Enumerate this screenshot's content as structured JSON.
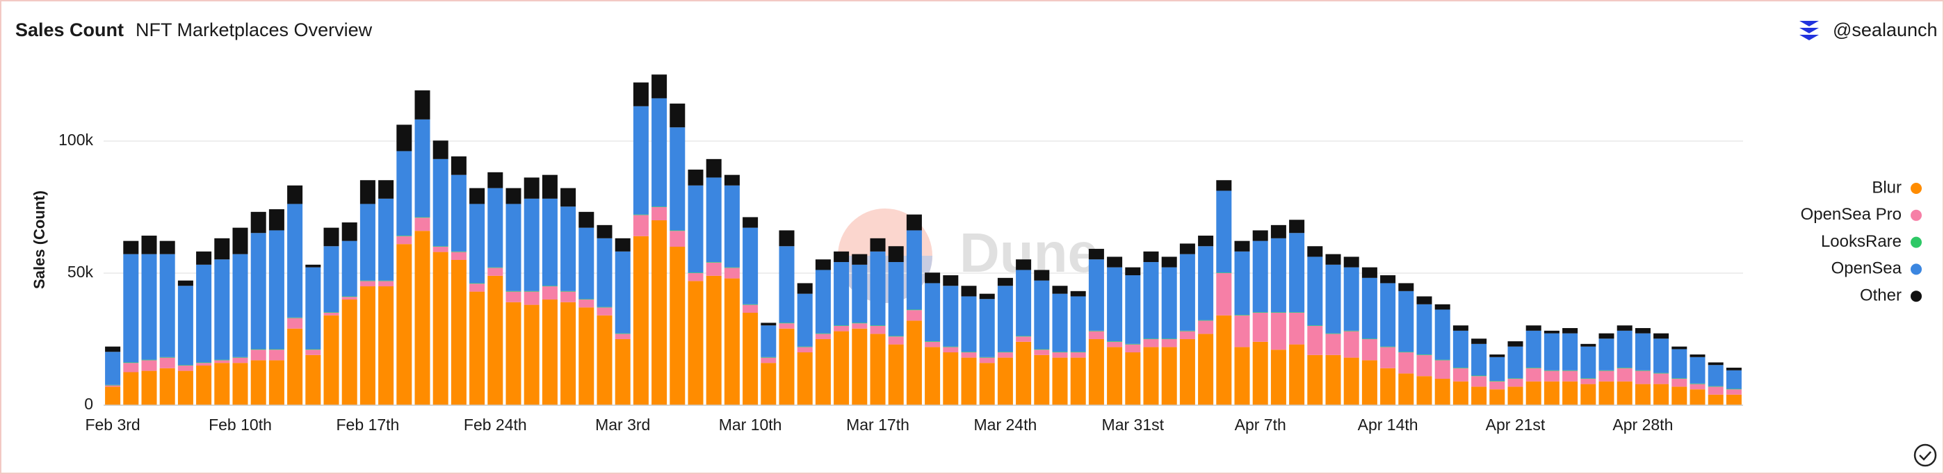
{
  "chart_data": {
    "type": "stacked_bar",
    "title": "Sales Count",
    "subtitle": "NFT Marketplaces Overview",
    "brand": "@sealaunch",
    "watermark": "Dune",
    "y_label": "Sales (Count)",
    "categories": [
      "Feb 3rd",
      null,
      null,
      null,
      null,
      null,
      null,
      "Feb 10th",
      null,
      null,
      null,
      null,
      null,
      null,
      "Feb 17th",
      null,
      null,
      null,
      null,
      null,
      null,
      "Feb 24th",
      null,
      null,
      null,
      null,
      null,
      null,
      "Mar 3rd",
      null,
      null,
      null,
      null,
      null,
      null,
      "Mar 10th",
      null,
      null,
      null,
      null,
      null,
      null,
      "Mar 17th",
      null,
      null,
      null,
      null,
      null,
      null,
      "Mar 24th",
      null,
      null,
      null,
      null,
      null,
      null,
      "Mar 31st",
      null,
      null,
      null,
      null,
      null,
      null,
      "Apr 7th",
      null,
      null,
      null,
      null,
      null,
      null,
      "Apr 14th",
      null,
      null,
      null,
      null,
      null,
      null,
      "Apr 21st",
      null,
      null,
      null,
      null,
      null,
      null,
      "Apr 28th",
      null,
      null,
      null,
      null,
      null
    ],
    "series": [
      {
        "name": "Blur",
        "color": "#ff8c00",
        "values": [
          7000,
          12500,
          13000,
          14000,
          13000,
          15000,
          16000,
          16000,
          17000,
          17000,
          29000,
          19000,
          34000,
          40000,
          45000,
          45000,
          61000,
          66000,
          58000,
          55000,
          43000,
          49000,
          39000,
          38000,
          40000,
          39000,
          37000,
          34000,
          25000,
          64000,
          70000,
          60000,
          47000,
          49000,
          48000,
          35000,
          16000,
          29000,
          20000,
          25000,
          28000,
          29000,
          27000,
          23000,
          32000,
          22000,
          20000,
          18000,
          16000,
          18000,
          24000,
          19000,
          18000,
          18000,
          25000,
          22000,
          20000,
          22000,
          22000,
          25000,
          27000,
          34000,
          22000,
          24000,
          21000,
          23000,
          19000,
          19000,
          18000,
          17000,
          14000,
          12000,
          11000,
          10000,
          9000,
          7000,
          6000,
          7000,
          9000,
          9000,
          9000,
          8000,
          9000,
          9000,
          8000,
          8000,
          7000,
          6000,
          4000,
          4000
        ]
      },
      {
        "name": "OpenSea Pro",
        "color": "#f67fa6",
        "values": [
          500,
          3500,
          4000,
          4000,
          2000,
          1000,
          1000,
          2000,
          4000,
          4000,
          4000,
          2000,
          1000,
          1000,
          2000,
          2000,
          3000,
          5000,
          2000,
          3000,
          3000,
          3000,
          4000,
          5000,
          5000,
          4000,
          3000,
          3000,
          2000,
          8000,
          5000,
          6000,
          3000,
          5000,
          4000,
          3000,
          2000,
          2000,
          2000,
          2000,
          2000,
          2000,
          3000,
          3000,
          4000,
          2000,
          2000,
          2000,
          2000,
          2000,
          2000,
          2000,
          2000,
          2000,
          3000,
          2000,
          3000,
          3000,
          3000,
          3000,
          5000,
          16000,
          12000,
          11000,
          14000,
          12000,
          11000,
          8000,
          10000,
          8000,
          8000,
          8000,
          8000,
          7000,
          5000,
          4000,
          3000,
          3000,
          5000,
          4000,
          4000,
          2000,
          4000,
          5000,
          5000,
          4000,
          3000,
          2000,
          3000,
          2000
        ]
      },
      {
        "name": "LooksRare",
        "color": "#2ec866",
        "values": [
          200,
          200,
          200,
          200,
          200,
          200,
          200,
          200,
          200,
          200,
          200,
          200,
          200,
          200,
          200,
          200,
          200,
          200,
          200,
          200,
          200,
          200,
          200,
          200,
          200,
          200,
          200,
          200,
          200,
          200,
          200,
          200,
          200,
          200,
          200,
          200,
          200,
          200,
          200,
          200,
          200,
          200,
          200,
          200,
          200,
          200,
          200,
          200,
          200,
          200,
          200,
          200,
          200,
          200,
          200,
          200,
          200,
          200,
          200,
          200,
          200,
          200,
          200,
          200,
          200,
          200,
          200,
          200,
          200,
          200,
          200,
          200,
          200,
          200,
          200,
          200,
          200,
          200,
          200,
          200,
          200,
          200,
          200,
          200,
          200,
          200,
          200,
          200,
          200,
          200
        ]
      },
      {
        "name": "OpenSea",
        "color": "#3b86e0",
        "values": [
          12500,
          41000,
          40000,
          39000,
          30000,
          37000,
          38000,
          39000,
          44000,
          45000,
          43000,
          31000,
          25000,
          21000,
          29000,
          31000,
          32000,
          37000,
          33000,
          29000,
          30000,
          30000,
          33000,
          35000,
          33000,
          32000,
          27000,
          26000,
          31000,
          41000,
          41000,
          39000,
          33000,
          32000,
          31000,
          29000,
          12000,
          29000,
          20000,
          24000,
          24000,
          22000,
          28000,
          28000,
          30000,
          22000,
          23000,
          21000,
          22000,
          25000,
          25000,
          26000,
          22000,
          21000,
          27000,
          28000,
          26000,
          29000,
          27000,
          29000,
          28000,
          31000,
          24000,
          27000,
          28000,
          30000,
          26000,
          26000,
          24000,
          23000,
          24000,
          23000,
          19000,
          19000,
          14000,
          12000,
          9000,
          12000,
          14000,
          14000,
          14000,
          12000,
          12000,
          14000,
          14000,
          13000,
          11000,
          10000,
          8000,
          7000
        ]
      },
      {
        "name": "Other",
        "color": "#111111",
        "values": [
          2000,
          5000,
          7000,
          5000,
          2000,
          5000,
          8000,
          10000,
          8000,
          8000,
          7000,
          1000,
          7000,
          7000,
          9000,
          7000,
          10000,
          11000,
          7000,
          7000,
          6000,
          6000,
          6000,
          8000,
          9000,
          7000,
          6000,
          5000,
          5000,
          9000,
          9000,
          9000,
          6000,
          7000,
          4000,
          4000,
          1000,
          6000,
          4000,
          4000,
          4000,
          4000,
          5000,
          6000,
          6000,
          4000,
          4000,
          4000,
          2000,
          3000,
          4000,
          4000,
          3000,
          2000,
          4000,
          4000,
          3000,
          4000,
          4000,
          4000,
          4000,
          4000,
          4000,
          4000,
          5000,
          5000,
          4000,
          4000,
          4000,
          4000,
          3000,
          3000,
          3000,
          2000,
          2000,
          2000,
          1000,
          2000,
          2000,
          1000,
          2000,
          1000,
          2000,
          2000,
          2000,
          2000,
          1000,
          1000,
          1000,
          1000
        ]
      }
    ],
    "ylim": [
      0,
      125000
    ],
    "yticks": [
      0,
      {
        "value": 50000,
        "label": "50k"
      },
      {
        "value": 100000,
        "label": "100k"
      }
    ],
    "grid": true,
    "legend": "right"
  }
}
